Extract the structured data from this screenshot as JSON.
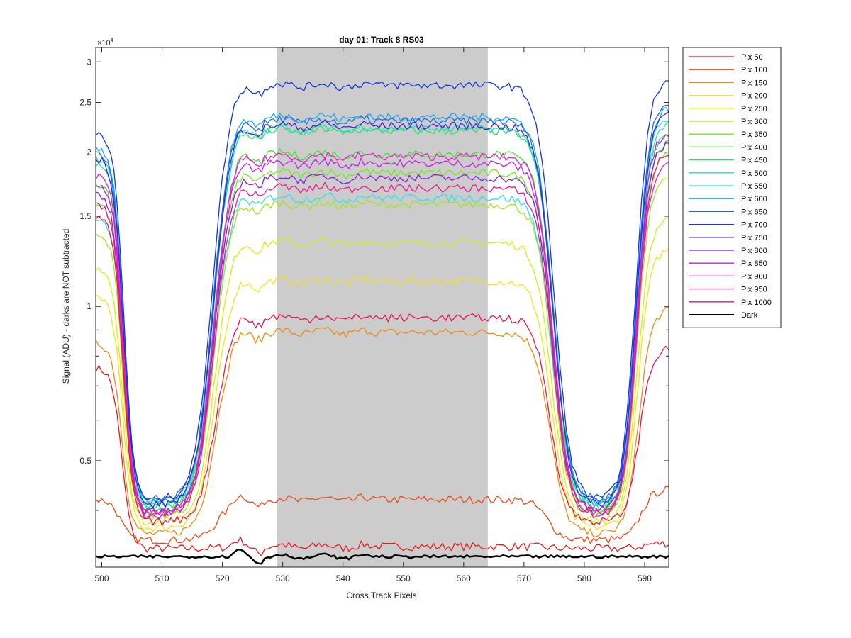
{
  "chart_data": {
    "type": "line",
    "title": "day 01: Track 8  RS03",
    "xlabel": "Cross Track Pixels",
    "ylabel": "Signal (ADU) - darks are NOT subtracted",
    "y_exponent_label": "×10",
    "y_exponent_power": "4",
    "xlim": [
      499,
      594
    ],
    "ylim": [
      0.31,
      3.2
    ],
    "y_scale": "log",
    "y_unit_multiplier": 10000,
    "xticks": [
      500,
      510,
      520,
      530,
      540,
      550,
      560,
      570,
      580,
      590
    ],
    "xtick_labels": [
      "500",
      "510",
      "520",
      "530",
      "540",
      "550",
      "560",
      "570",
      "580",
      "590"
    ],
    "yticks": [
      0.5,
      1,
      1.5,
      2,
      2.5,
      3
    ],
    "ytick_labels": [
      "0.5",
      "1",
      "1.5",
      "2",
      "2.5",
      "3"
    ],
    "shaded_region": {
      "x_start": 529,
      "x_end": 564,
      "color": "#cccccc"
    },
    "grid": false,
    "legend_position": "outside-right",
    "series": [
      {
        "name": "Pix 50",
        "color": "#e8191c",
        "plateau": 0.34,
        "valley": 0.337,
        "left": 0.76,
        "right": 0.345
      },
      {
        "name": "Pix 100",
        "color": "#ec4a16",
        "plateau": 0.42,
        "valley": 0.35,
        "left": 0.42,
        "right": 0.44
      },
      {
        "name": "Pix 150",
        "color": "#f08a10",
        "plateau": 0.89,
        "valley": 0.36,
        "left": 0.85,
        "right": 0.99
      },
      {
        "name": "Pix 200",
        "color": "#f5e31a",
        "plateau": 1.12,
        "valley": 0.37,
        "left": 1.05,
        "right": 1.3
      },
      {
        "name": "Pix 250",
        "color": "#d2ee14",
        "plateau": 1.33,
        "valley": 0.38,
        "left": 1.2,
        "right": 1.5
      },
      {
        "name": "Pix 300",
        "color": "#a0e616",
        "plateau": 1.58,
        "valley": 0.39,
        "left": 1.4,
        "right": 1.8
      },
      {
        "name": "Pix 350",
        "color": "#74e61c",
        "plateau": 1.82,
        "valley": 0.395,
        "left": 1.6,
        "right": 2.0
      },
      {
        "name": "Pix 400",
        "color": "#38e82c",
        "plateau": 1.98,
        "valley": 0.4,
        "left": 1.75,
        "right": 2.1
      },
      {
        "name": "Pix 450",
        "color": "#22e46a",
        "plateau": 2.2,
        "valley": 0.405,
        "left": 1.9,
        "right": 2.2
      },
      {
        "name": "Pix 500",
        "color": "#1ee0b4",
        "plateau": 2.22,
        "valley": 0.41,
        "left": 1.95,
        "right": 2.3
      },
      {
        "name": "Pix 550",
        "color": "#26e2ee",
        "plateau": 1.63,
        "valley": 0.412,
        "left": 1.5,
        "right": 2.35
      },
      {
        "name": "Pix 600",
        "color": "#1ea6ea",
        "plateau": 2.34,
        "valley": 0.415,
        "left": 2.05,
        "right": 2.45
      },
      {
        "name": "Pix 650",
        "color": "#1a6ee0",
        "plateau": 2.3,
        "valley": 0.418,
        "left": 2.0,
        "right": 2.5
      },
      {
        "name": "Pix 700",
        "color": "#1434e0",
        "plateau": 2.7,
        "valley": 0.42,
        "left": 2.2,
        "right": 2.78
      },
      {
        "name": "Pix 750",
        "color": "#4220d6",
        "plateau": 2.25,
        "valley": 0.41,
        "left": 1.95,
        "right": 2.4
      },
      {
        "name": "Pix 800",
        "color": "#8a1ee0",
        "plateau": 1.78,
        "valley": 0.4,
        "left": 1.65,
        "right": 2.1
      },
      {
        "name": "Pix 850",
        "color": "#c21ee6",
        "plateau": 1.9,
        "valley": 0.395,
        "left": 1.75,
        "right": 2.2
      },
      {
        "name": "Pix 900",
        "color": "#ee1ad2",
        "plateau": 1.96,
        "valley": 0.395,
        "left": 1.8,
        "right": 1.9
      },
      {
        "name": "Pix 950",
        "color": "#ec1890",
        "plateau": 1.7,
        "valley": 0.39,
        "left": 1.6,
        "right": 2.0
      },
      {
        "name": "Pix 1000",
        "color": "#e81650",
        "plateau": 0.95,
        "valley": 0.38,
        "left": 1.5,
        "right": 0.83
      },
      {
        "name": "Dark",
        "color": "#000000",
        "plateau": 0.325,
        "valley": 0.325,
        "left": 0.325,
        "right": 0.325
      }
    ]
  }
}
